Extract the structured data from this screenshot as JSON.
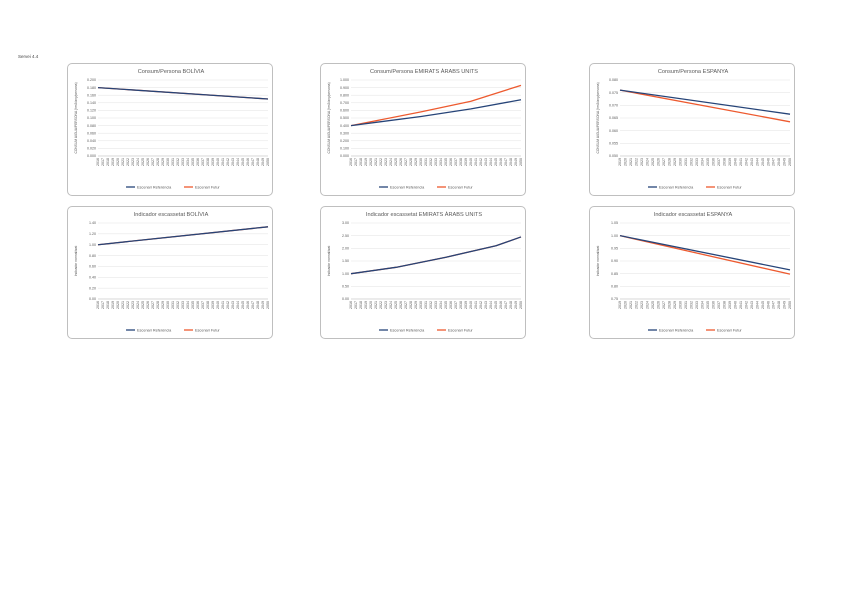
{
  "page": {
    "label": "Servei 4.4"
  },
  "legend": {
    "series_a": "Escenari Referència",
    "series_b": "Escenari Futur"
  },
  "colors": {
    "series_a": "#264478",
    "series_b": "#ed5a2f",
    "grid": "#d9d9d9",
    "axis": "#bfbfbf"
  },
  "chart_data": [
    {
      "type": "line",
      "title": "Consum/Persona BOLÍVIA",
      "ylabel": "CONSUM AIGUA/PERSONA (hm3/any/persona)",
      "ylim": [
        0,
        0.2
      ],
      "yticks": [
        "0.000",
        "0.020",
        "0.040",
        "0.060",
        "0.080",
        "0.100",
        "0.120",
        "0.140",
        "0.160",
        "0.180",
        "0.200"
      ],
      "years": [
        2016,
        2030,
        2050
      ],
      "series": [
        {
          "name": "Escenari Referència",
          "points": [
            [
              2016,
              0.18
            ],
            [
              2050,
              0.15
            ]
          ]
        },
        {
          "name": "Escenari Futur",
          "points": [
            [
              2016,
              0.18
            ],
            [
              2050,
              0.15
            ]
          ]
        }
      ]
    },
    {
      "type": "line",
      "title": "Consum/Persona EMIRATS ÀRABS UNITS",
      "ylabel": "CONSUM AIGUA/PERSONA (hm3/any/persona)",
      "ylim": [
        0,
        1.0
      ],
      "yticks": [
        "0.000",
        "0.100",
        "0.200",
        "0.300",
        "0.400",
        "0.500",
        "0.600",
        "0.700",
        "0.800",
        "0.900",
        "1.000"
      ],
      "years": [
        2016,
        2050
      ],
      "series": [
        {
          "name": "Escenari Referència",
          "points": [
            [
              2016,
              0.4
            ],
            [
              2030,
              0.52
            ],
            [
              2040,
              0.62
            ],
            [
              2050,
              0.74
            ]
          ]
        },
        {
          "name": "Escenari Futur",
          "points": [
            [
              2016,
              0.4
            ],
            [
              2030,
              0.58
            ],
            [
              2040,
              0.72
            ],
            [
              2050,
              0.93
            ]
          ]
        }
      ]
    },
    {
      "type": "line",
      "title": "Consum/Persona ESPANYA",
      "ylabel": "CONSUM AIGUA/PERSONA (hm3/any/persona)",
      "ylim": [
        0.05,
        0.08
      ],
      "yticks": [
        "0.050",
        "0.055",
        "0.060",
        "0.065",
        "0.070",
        "0.075",
        "0.080"
      ],
      "years": [
        2019,
        2050
      ],
      "series": [
        {
          "name": "Escenari Referència",
          "points": [
            [
              2019,
              0.076
            ],
            [
              2050,
              0.0665
            ]
          ]
        },
        {
          "name": "Escenari Futur",
          "points": [
            [
              2019,
              0.076
            ],
            [
              2050,
              0.0635
            ]
          ]
        }
      ]
    },
    {
      "type": "line",
      "title": "Indicador escassetat BOLÍVIA",
      "ylabel": "Indicador normalitzat",
      "ylim": [
        0,
        1.4
      ],
      "yticks": [
        "0.00",
        "0.20",
        "0.40",
        "0.60",
        "0.80",
        "1.00",
        "1.20",
        "1.40"
      ],
      "years": [
        2016,
        2050
      ],
      "series": [
        {
          "name": "Escenari Referència",
          "points": [
            [
              2016,
              1.0
            ],
            [
              2050,
              1.33
            ]
          ]
        },
        {
          "name": "Escenari Futur",
          "points": [
            [
              2016,
              1.0
            ],
            [
              2050,
              1.33
            ]
          ]
        }
      ]
    },
    {
      "type": "line",
      "title": "Indicador escassetat EMIRATS ÀRABS UNITS",
      "ylabel": "Indicador normalitzat",
      "ylim": [
        0,
        3.0
      ],
      "yticks": [
        "0.00",
        "0.50",
        "1.00",
        "1.50",
        "2.00",
        "2.50",
        "3.00"
      ],
      "years": [
        2016,
        2050
      ],
      "series": [
        {
          "name": "Escenari Referència",
          "points": [
            [
              2016,
              1.0
            ],
            [
              2025,
              1.25
            ],
            [
              2035,
              1.65
            ],
            [
              2045,
              2.1
            ],
            [
              2050,
              2.45
            ]
          ]
        },
        {
          "name": "Escenari Futur",
          "points": [
            [
              2016,
              1.0
            ],
            [
              2025,
              1.25
            ],
            [
              2035,
              1.65
            ],
            [
              2045,
              2.1
            ],
            [
              2050,
              2.45
            ]
          ]
        }
      ]
    },
    {
      "type": "line",
      "title": "Indicador escassetat ESPANYA",
      "ylabel": "Indicador normalitzat",
      "ylim": [
        0.75,
        1.05
      ],
      "yticks": [
        "0.75",
        "0.80",
        "0.85",
        "0.90",
        "0.95",
        "1.00",
        "1.05"
      ],
      "years": [
        2019,
        2050
      ],
      "series": [
        {
          "name": "Escenari Referència",
          "points": [
            [
              2019,
              1.0
            ],
            [
              2050,
              0.865
            ]
          ]
        },
        {
          "name": "Escenari Futur",
          "points": [
            [
              2019,
              1.0
            ],
            [
              2050,
              0.848
            ]
          ]
        }
      ]
    }
  ]
}
